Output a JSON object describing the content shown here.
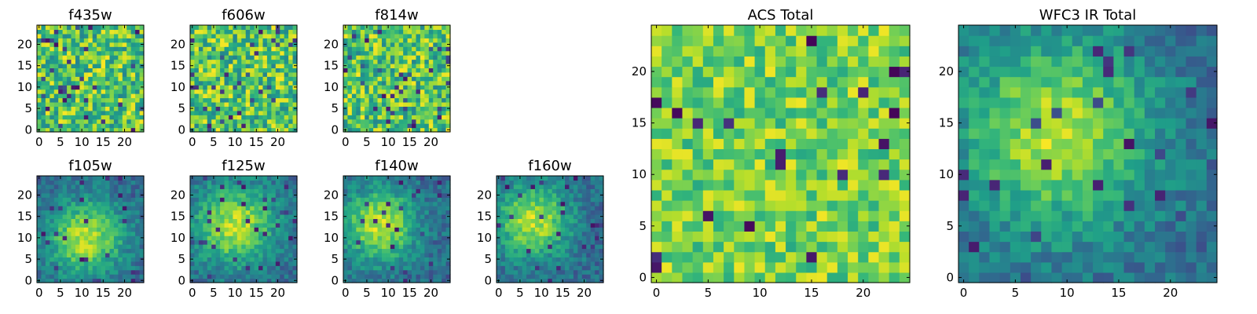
{
  "chart_data": [
    {
      "type": "heatmap",
      "title": "f435w",
      "xlim": [
        -0.5,
        24.5
      ],
      "ylim": [
        -0.5,
        24.5
      ],
      "xticks": [
        "0",
        "5",
        "10",
        "15",
        "20"
      ],
      "yticks": [
        "0",
        "5",
        "10",
        "15",
        "20"
      ],
      "colormap": "viridis",
      "grid": false,
      "pattern": "noise",
      "seed": 11
    },
    {
      "type": "heatmap",
      "title": "f606w",
      "xlim": [
        -0.5,
        24.5
      ],
      "ylim": [
        -0.5,
        24.5
      ],
      "xticks": [
        "0",
        "5",
        "10",
        "15",
        "20"
      ],
      "yticks": [
        "0",
        "5",
        "10",
        "15",
        "20"
      ],
      "colormap": "viridis",
      "grid": false,
      "pattern": "noise",
      "seed": 23
    },
    {
      "type": "heatmap",
      "title": "f814w",
      "xlim": [
        -0.5,
        24.5
      ],
      "ylim": [
        -0.5,
        24.5
      ],
      "xticks": [
        "0",
        "5",
        "10",
        "15",
        "20"
      ],
      "yticks": [
        "0",
        "5",
        "10",
        "15",
        "20"
      ],
      "colormap": "viridis",
      "grid": false,
      "pattern": "noise",
      "seed": 37
    },
    {
      "type": "heatmap",
      "title": "f105w",
      "xlim": [
        -0.5,
        24.5
      ],
      "ylim": [
        -0.5,
        24.5
      ],
      "xticks": [
        "0",
        "5",
        "10",
        "15",
        "20"
      ],
      "yticks": [
        "0",
        "5",
        "10",
        "15",
        "20"
      ],
      "colormap": "viridis",
      "grid": false,
      "pattern": "blob",
      "blob_center": [
        11,
        10
      ],
      "blob_sigma": 6,
      "seed": 41
    },
    {
      "type": "heatmap",
      "title": "f125w",
      "xlim": [
        -0.5,
        24.5
      ],
      "ylim": [
        -0.5,
        24.5
      ],
      "xticks": [
        "0",
        "5",
        "10",
        "15",
        "20"
      ],
      "yticks": [
        "0",
        "5",
        "10",
        "15",
        "20"
      ],
      "colormap": "viridis",
      "grid": false,
      "pattern": "blob",
      "blob_center": [
        10,
        13
      ],
      "blob_sigma": 6.5,
      "seed": 53
    },
    {
      "type": "heatmap",
      "title": "f140w",
      "xlim": [
        -0.5,
        24.5
      ],
      "ylim": [
        -0.5,
        24.5
      ],
      "xticks": [
        "0",
        "5",
        "10",
        "15",
        "20"
      ],
      "yticks": [
        "0",
        "5",
        "10",
        "15",
        "20"
      ],
      "colormap": "viridis",
      "grid": false,
      "pattern": "blob",
      "blob_center": [
        8,
        13
      ],
      "blob_sigma": 6,
      "seed": 67
    },
    {
      "type": "heatmap",
      "title": "f160w",
      "xlim": [
        -0.5,
        24.5
      ],
      "ylim": [
        -0.5,
        24.5
      ],
      "xticks": [
        "0",
        "5",
        "10",
        "15",
        "20"
      ],
      "yticks": [
        "0",
        "5",
        "10",
        "15",
        "20"
      ],
      "colormap": "viridis",
      "grid": false,
      "pattern": "blob",
      "blob_center": [
        8,
        14
      ],
      "blob_sigma": 6,
      "seed": 71
    },
    {
      "type": "heatmap",
      "title": "ACS Total",
      "xlim": [
        -0.5,
        24.5
      ],
      "ylim": [
        -0.5,
        24.5
      ],
      "xticks": [
        "0",
        "5",
        "10",
        "15",
        "20"
      ],
      "yticks": [
        "0",
        "5",
        "10",
        "15",
        "20"
      ],
      "colormap": "viridis",
      "grid": false,
      "pattern": "smooth-noise",
      "seed": 83
    },
    {
      "type": "heatmap",
      "title": "WFC3 IR Total",
      "xlim": [
        -0.5,
        24.5
      ],
      "ylim": [
        -0.5,
        24.5
      ],
      "xticks": [
        "0",
        "5",
        "10",
        "15",
        "20"
      ],
      "yticks": [
        "0",
        "5",
        "10",
        "15",
        "20"
      ],
      "colormap": "viridis",
      "grid": false,
      "pattern": "blob",
      "blob_center": [
        9,
        14
      ],
      "blob_sigma": 6.5,
      "seed": 97
    }
  ]
}
